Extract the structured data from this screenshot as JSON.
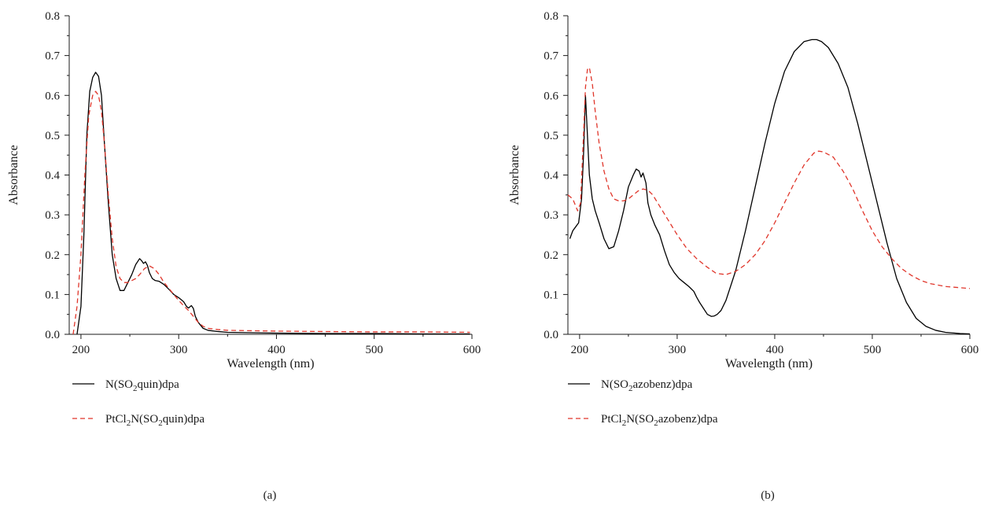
{
  "chart_data": [
    {
      "type": "line",
      "panel_label": "(a)",
      "xlabel": "Wavelength (nm)",
      "ylabel": "Absorbance",
      "xlim": [
        188,
        600
      ],
      "ylim": [
        0,
        0.8
      ],
      "x_ticks": [
        "200",
        "300",
        "400",
        "500",
        "600"
      ],
      "y_ticks": [
        "0.0",
        "0.1",
        "0.2",
        "0.3",
        "0.4",
        "0.5",
        "0.6",
        "0.7",
        "0.8"
      ],
      "grid": false,
      "legend_position": "below-left",
      "series": [
        {
          "name_main": "N(SO",
          "name_sub": "2",
          "name_tail": "quin)dpa",
          "color": "#000000",
          "dash": "solid",
          "x": [
            196,
            200,
            203,
            206,
            209,
            212,
            215,
            218,
            221,
            224,
            228,
            232,
            236,
            240,
            244,
            248,
            252,
            256,
            260,
            262,
            264,
            266,
            268,
            270,
            273,
            276,
            280,
            285,
            290,
            295,
            300,
            305,
            308,
            310,
            313,
            315,
            317,
            320,
            325,
            330,
            340,
            350,
            400,
            450,
            500,
            550,
            598
          ],
          "y": [
            0.0,
            0.07,
            0.25,
            0.5,
            0.61,
            0.645,
            0.658,
            0.648,
            0.6,
            0.48,
            0.33,
            0.2,
            0.14,
            0.11,
            0.11,
            0.13,
            0.15,
            0.175,
            0.19,
            0.185,
            0.178,
            0.182,
            0.173,
            0.155,
            0.14,
            0.135,
            0.133,
            0.125,
            0.113,
            0.1,
            0.092,
            0.082,
            0.07,
            0.066,
            0.072,
            0.065,
            0.045,
            0.03,
            0.015,
            0.01,
            0.007,
            0.005,
            0.003,
            0.002,
            0.002,
            0.001,
            0.001
          ]
        },
        {
          "name_main": "PtCl",
          "name_sub": "2",
          "name_tail": "N(SO",
          "name_sub2": "2",
          "name_tail2": "quin)dpa",
          "color": "#e0362b",
          "dash": "dashed",
          "x": [
            192,
            196,
            200,
            204,
            208,
            212,
            215,
            218,
            221,
            224,
            228,
            232,
            236,
            240,
            244,
            248,
            252,
            256,
            260,
            265,
            270,
            275,
            280,
            285,
            290,
            295,
            300,
            305,
            310,
            315,
            320,
            325,
            330,
            340,
            350,
            400,
            450,
            500,
            550,
            598
          ],
          "y": [
            0.0,
            0.07,
            0.2,
            0.4,
            0.55,
            0.6,
            0.61,
            0.6,
            0.56,
            0.48,
            0.35,
            0.24,
            0.17,
            0.14,
            0.13,
            0.13,
            0.135,
            0.14,
            0.15,
            0.165,
            0.172,
            0.165,
            0.15,
            0.13,
            0.115,
            0.1,
            0.085,
            0.072,
            0.06,
            0.045,
            0.03,
            0.02,
            0.015,
            0.012,
            0.01,
            0.008,
            0.007,
            0.006,
            0.006,
            0.005
          ]
        }
      ]
    },
    {
      "type": "line",
      "panel_label": "(b)",
      "xlabel": "Wavelength (nm)",
      "ylabel": "Absorbance",
      "xlim": [
        188,
        600
      ],
      "ylim": [
        0,
        0.8
      ],
      "x_ticks": [
        "200",
        "300",
        "400",
        "500",
        "600"
      ],
      "y_ticks": [
        "0.0",
        "0.1",
        "0.2",
        "0.3",
        "0.4",
        "0.5",
        "0.6",
        "0.7",
        "0.8"
      ],
      "grid": false,
      "legend_position": "below-left",
      "series": [
        {
          "name_main": "N(SO",
          "name_sub": "2",
          "name_tail": "azobenz)dpa",
          "color": "#000000",
          "dash": "solid",
          "x": [
            190,
            193,
            196,
            199,
            202,
            204,
            206,
            208,
            210,
            213,
            216,
            220,
            225,
            230,
            235,
            240,
            245,
            250,
            255,
            258,
            261,
            263,
            265,
            268,
            270,
            273,
            277,
            282,
            287,
            292,
            297,
            302,
            307,
            312,
            317,
            320,
            323,
            327,
            331,
            335,
            338,
            341,
            345,
            350,
            360,
            370,
            380,
            390,
            400,
            410,
            420,
            430,
            438,
            443,
            448,
            455,
            465,
            475,
            485,
            495,
            505,
            515,
            525,
            535,
            545,
            555,
            565,
            575,
            590,
            600
          ],
          "y": [
            0.24,
            0.26,
            0.27,
            0.28,
            0.34,
            0.45,
            0.6,
            0.5,
            0.4,
            0.34,
            0.31,
            0.28,
            0.24,
            0.215,
            0.22,
            0.26,
            0.31,
            0.37,
            0.4,
            0.415,
            0.41,
            0.395,
            0.405,
            0.38,
            0.33,
            0.3,
            0.275,
            0.25,
            0.21,
            0.175,
            0.155,
            0.14,
            0.13,
            0.12,
            0.108,
            0.093,
            0.08,
            0.065,
            0.05,
            0.045,
            0.046,
            0.05,
            0.06,
            0.085,
            0.16,
            0.26,
            0.37,
            0.48,
            0.58,
            0.66,
            0.71,
            0.735,
            0.74,
            0.74,
            0.735,
            0.72,
            0.68,
            0.62,
            0.53,
            0.43,
            0.33,
            0.23,
            0.14,
            0.08,
            0.04,
            0.02,
            0.01,
            0.005,
            0.002,
            0.001
          ]
        },
        {
          "name_main": "PtCl",
          "name_sub": "2",
          "name_tail": "N(SO",
          "name_sub2": "2",
          "name_tail2": "azobenz)dpa",
          "color": "#e0362b",
          "dash": "dashed",
          "x": [
            188,
            193,
            198,
            201,
            204,
            206,
            208,
            210,
            213,
            216,
            220,
            225,
            230,
            235,
            240,
            245,
            250,
            255,
            260,
            265,
            270,
            275,
            280,
            290,
            300,
            310,
            320,
            330,
            340,
            350,
            360,
            370,
            380,
            390,
            400,
            410,
            420,
            430,
            440,
            445,
            450,
            460,
            470,
            480,
            490,
            500,
            510,
            520,
            530,
            540,
            550,
            560,
            575,
            590,
            600
          ],
          "y": [
            0.35,
            0.34,
            0.31,
            0.33,
            0.5,
            0.62,
            0.665,
            0.67,
            0.63,
            0.56,
            0.48,
            0.41,
            0.365,
            0.34,
            0.335,
            0.335,
            0.34,
            0.35,
            0.36,
            0.365,
            0.362,
            0.35,
            0.33,
            0.29,
            0.25,
            0.215,
            0.19,
            0.17,
            0.153,
            0.15,
            0.158,
            0.175,
            0.2,
            0.235,
            0.28,
            0.33,
            0.38,
            0.425,
            0.455,
            0.46,
            0.458,
            0.445,
            0.41,
            0.365,
            0.31,
            0.26,
            0.22,
            0.19,
            0.165,
            0.148,
            0.135,
            0.127,
            0.12,
            0.117,
            0.115
          ]
        }
      ]
    }
  ]
}
